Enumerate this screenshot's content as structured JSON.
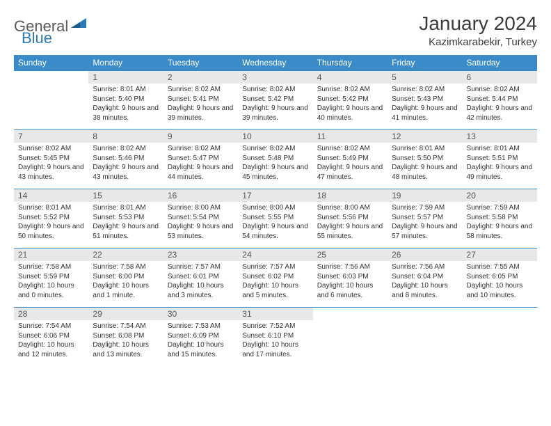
{
  "logo": {
    "part1": "General",
    "part2": "Blue"
  },
  "title": "January 2024",
  "location": "Kazimkarabekir, Turkey",
  "colors": {
    "header_bg": "#3b8bc9",
    "header_text": "#ffffff",
    "daynum_bg": "#e8e8e8",
    "row_border": "#3b8bc9",
    "body_text": "#333333",
    "logo_gray": "#5a5a5a",
    "logo_blue": "#2a7ab9"
  },
  "weekdays": [
    "Sunday",
    "Monday",
    "Tuesday",
    "Wednesday",
    "Thursday",
    "Friday",
    "Saturday"
  ],
  "weeks": [
    [
      {
        "n": "",
        "t": ""
      },
      {
        "n": "1",
        "t": "Sunrise: 8:01 AM\nSunset: 5:40 PM\nDaylight: 9 hours and 38 minutes."
      },
      {
        "n": "2",
        "t": "Sunrise: 8:02 AM\nSunset: 5:41 PM\nDaylight: 9 hours and 39 minutes."
      },
      {
        "n": "3",
        "t": "Sunrise: 8:02 AM\nSunset: 5:42 PM\nDaylight: 9 hours and 39 minutes."
      },
      {
        "n": "4",
        "t": "Sunrise: 8:02 AM\nSunset: 5:42 PM\nDaylight: 9 hours and 40 minutes."
      },
      {
        "n": "5",
        "t": "Sunrise: 8:02 AM\nSunset: 5:43 PM\nDaylight: 9 hours and 41 minutes."
      },
      {
        "n": "6",
        "t": "Sunrise: 8:02 AM\nSunset: 5:44 PM\nDaylight: 9 hours and 42 minutes."
      }
    ],
    [
      {
        "n": "7",
        "t": "Sunrise: 8:02 AM\nSunset: 5:45 PM\nDaylight: 9 hours and 43 minutes."
      },
      {
        "n": "8",
        "t": "Sunrise: 8:02 AM\nSunset: 5:46 PM\nDaylight: 9 hours and 43 minutes."
      },
      {
        "n": "9",
        "t": "Sunrise: 8:02 AM\nSunset: 5:47 PM\nDaylight: 9 hours and 44 minutes."
      },
      {
        "n": "10",
        "t": "Sunrise: 8:02 AM\nSunset: 5:48 PM\nDaylight: 9 hours and 45 minutes."
      },
      {
        "n": "11",
        "t": "Sunrise: 8:02 AM\nSunset: 5:49 PM\nDaylight: 9 hours and 47 minutes."
      },
      {
        "n": "12",
        "t": "Sunrise: 8:01 AM\nSunset: 5:50 PM\nDaylight: 9 hours and 48 minutes."
      },
      {
        "n": "13",
        "t": "Sunrise: 8:01 AM\nSunset: 5:51 PM\nDaylight: 9 hours and 49 minutes."
      }
    ],
    [
      {
        "n": "14",
        "t": "Sunrise: 8:01 AM\nSunset: 5:52 PM\nDaylight: 9 hours and 50 minutes."
      },
      {
        "n": "15",
        "t": "Sunrise: 8:01 AM\nSunset: 5:53 PM\nDaylight: 9 hours and 51 minutes."
      },
      {
        "n": "16",
        "t": "Sunrise: 8:00 AM\nSunset: 5:54 PM\nDaylight: 9 hours and 53 minutes."
      },
      {
        "n": "17",
        "t": "Sunrise: 8:00 AM\nSunset: 5:55 PM\nDaylight: 9 hours and 54 minutes."
      },
      {
        "n": "18",
        "t": "Sunrise: 8:00 AM\nSunset: 5:56 PM\nDaylight: 9 hours and 55 minutes."
      },
      {
        "n": "19",
        "t": "Sunrise: 7:59 AM\nSunset: 5:57 PM\nDaylight: 9 hours and 57 minutes."
      },
      {
        "n": "20",
        "t": "Sunrise: 7:59 AM\nSunset: 5:58 PM\nDaylight: 9 hours and 58 minutes."
      }
    ],
    [
      {
        "n": "21",
        "t": "Sunrise: 7:58 AM\nSunset: 5:59 PM\nDaylight: 10 hours and 0 minutes."
      },
      {
        "n": "22",
        "t": "Sunrise: 7:58 AM\nSunset: 6:00 PM\nDaylight: 10 hours and 1 minute."
      },
      {
        "n": "23",
        "t": "Sunrise: 7:57 AM\nSunset: 6:01 PM\nDaylight: 10 hours and 3 minutes."
      },
      {
        "n": "24",
        "t": "Sunrise: 7:57 AM\nSunset: 6:02 PM\nDaylight: 10 hours and 5 minutes."
      },
      {
        "n": "25",
        "t": "Sunrise: 7:56 AM\nSunset: 6:03 PM\nDaylight: 10 hours and 6 minutes."
      },
      {
        "n": "26",
        "t": "Sunrise: 7:56 AM\nSunset: 6:04 PM\nDaylight: 10 hours and 8 minutes."
      },
      {
        "n": "27",
        "t": "Sunrise: 7:55 AM\nSunset: 6:05 PM\nDaylight: 10 hours and 10 minutes."
      }
    ],
    [
      {
        "n": "28",
        "t": "Sunrise: 7:54 AM\nSunset: 6:06 PM\nDaylight: 10 hours and 12 minutes."
      },
      {
        "n": "29",
        "t": "Sunrise: 7:54 AM\nSunset: 6:08 PM\nDaylight: 10 hours and 13 minutes."
      },
      {
        "n": "30",
        "t": "Sunrise: 7:53 AM\nSunset: 6:09 PM\nDaylight: 10 hours and 15 minutes."
      },
      {
        "n": "31",
        "t": "Sunrise: 7:52 AM\nSunset: 6:10 PM\nDaylight: 10 hours and 17 minutes."
      },
      {
        "n": "",
        "t": ""
      },
      {
        "n": "",
        "t": ""
      },
      {
        "n": "",
        "t": ""
      }
    ]
  ]
}
